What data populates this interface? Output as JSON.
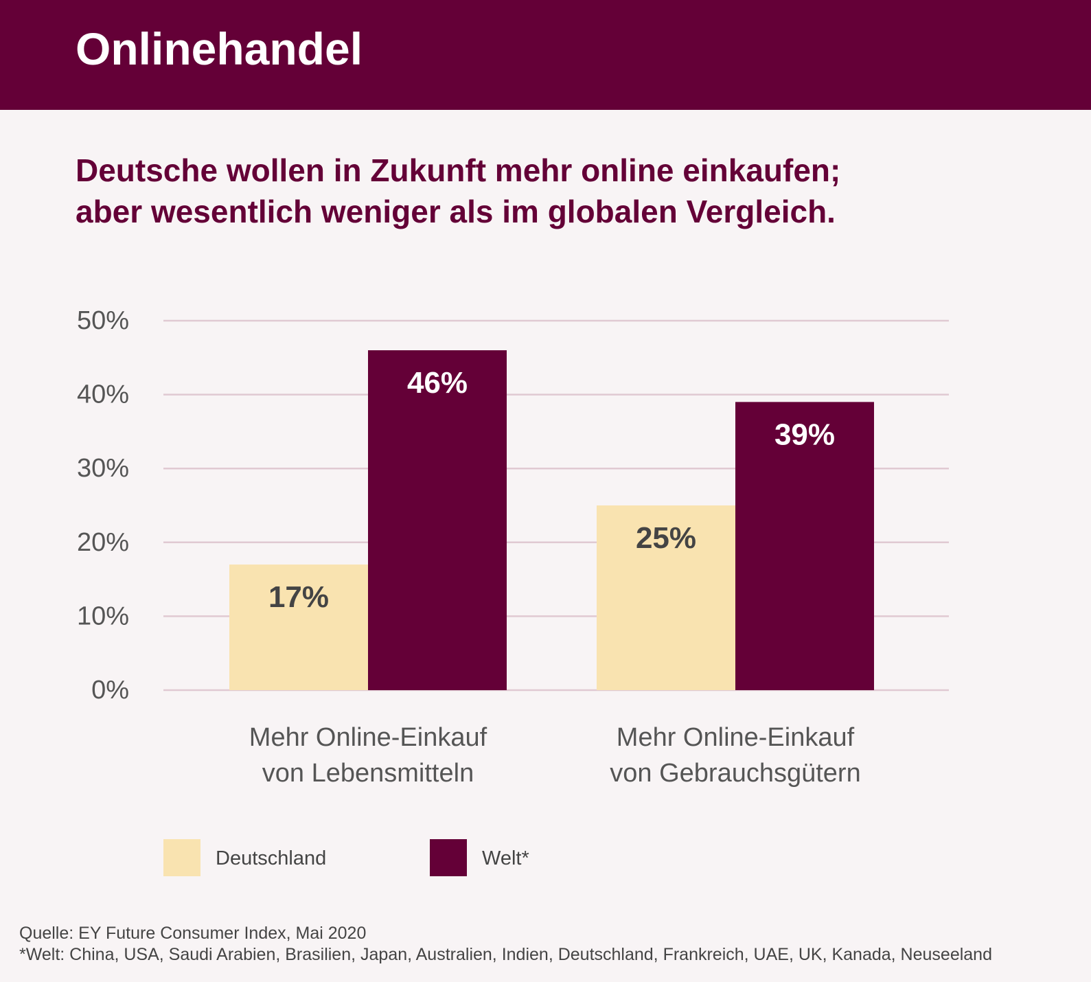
{
  "header": {
    "title": "Onlinehandel"
  },
  "subtitle": {
    "line1": "Deutsche wollen in Zukunft mehr online einkaufen;",
    "line2": "aber wesentlich weniger als im globalen Vergleich."
  },
  "colors": {
    "header_bg": "#640037",
    "deutschland": "#f9e3b0",
    "welt": "#640037",
    "gridline": "#e0c9d2",
    "axis_text": "#555555"
  },
  "chart_data": {
    "type": "bar",
    "categories": [
      [
        "Mehr Online-Einkauf",
        "von Lebensmitteln"
      ],
      [
        "Mehr Online-Einkauf",
        "von Gebrauchsgütern"
      ]
    ],
    "series": [
      {
        "name": "Deutschland",
        "values": [
          17,
          25
        ],
        "labels": [
          "17%",
          "25%"
        ],
        "color": "#f9e3b0",
        "label_color": "#444444"
      },
      {
        "name": "Welt*",
        "values": [
          46,
          39
        ],
        "labels": [
          "46%",
          "39%"
        ],
        "color": "#640037",
        "label_color": "#ffffff"
      }
    ],
    "yticks": [
      "0%",
      "10%",
      "20%",
      "30%",
      "40%",
      "50%"
    ],
    "ylim": [
      0,
      50
    ],
    "grid": true,
    "legend_position": "bottom-left"
  },
  "legend": {
    "items": [
      {
        "label": "Deutschland",
        "color": "#f9e3b0"
      },
      {
        "label": "Welt*",
        "color": "#640037"
      }
    ]
  },
  "footnote": {
    "source": "Quelle: EY Future Consumer Index, Mai 2020",
    "note": "*Welt: China, USA, Saudi Arabien, Brasilien, Japan, Australien, Indien, Deutschland, Frankreich, UAE, UK, Kanada, Neuseeland"
  }
}
